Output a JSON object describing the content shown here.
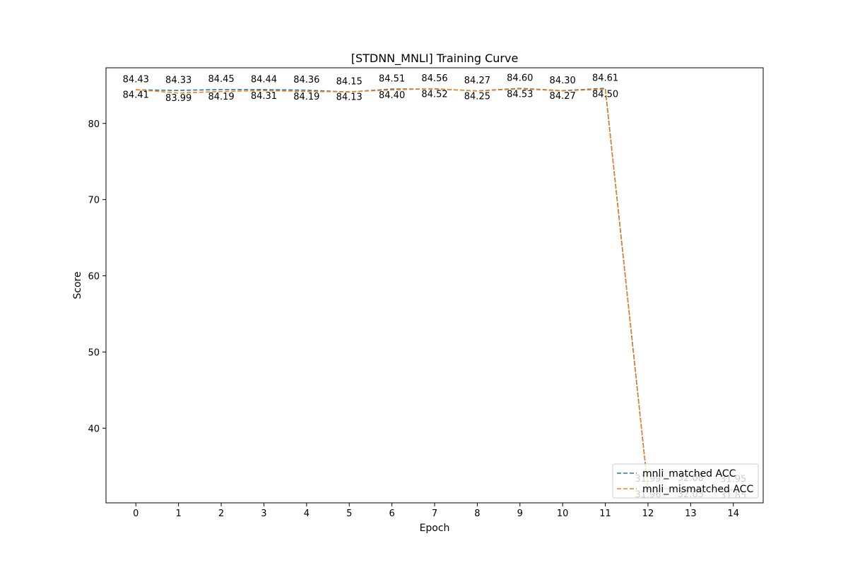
{
  "chart_data": {
    "type": "line",
    "title": "[STDNN_MNLI] Training Curve",
    "xlabel": "Epoch",
    "ylabel": "Score",
    "x": [
      0,
      1,
      2,
      3,
      4,
      5,
      6,
      7,
      8,
      9,
      10,
      11,
      12,
      13,
      14
    ],
    "xticks": [
      "0",
      "1",
      "2",
      "3",
      "4",
      "5",
      "6",
      "7",
      "8",
      "9",
      "10",
      "11",
      "12",
      "13",
      "14"
    ],
    "xlim": [
      -0.7,
      14.7
    ],
    "ylim": [
      30.2,
      87.3
    ],
    "yticks": [
      40,
      50,
      60,
      70,
      80
    ],
    "grid": false,
    "legend_position": "lower-right",
    "series": [
      {
        "name": "mnli_matched ACC",
        "color": "#1f77b4",
        "dash": "dashed",
        "values": [
          84.41,
          84.33,
          84.45,
          84.44,
          84.36,
          84.13,
          84.51,
          84.52,
          84.27,
          84.6,
          84.3,
          84.61,
          31.99,
          32.08,
          31.85
        ]
      },
      {
        "name": "mnli_mismatched ACC",
        "color": "#ff7f0e",
        "dash": "dashed",
        "values": [
          84.43,
          83.99,
          84.19,
          84.31,
          84.19,
          84.15,
          84.4,
          84.56,
          84.25,
          84.53,
          84.27,
          84.5,
          31.96,
          32.03,
          31.95
        ]
      }
    ]
  }
}
